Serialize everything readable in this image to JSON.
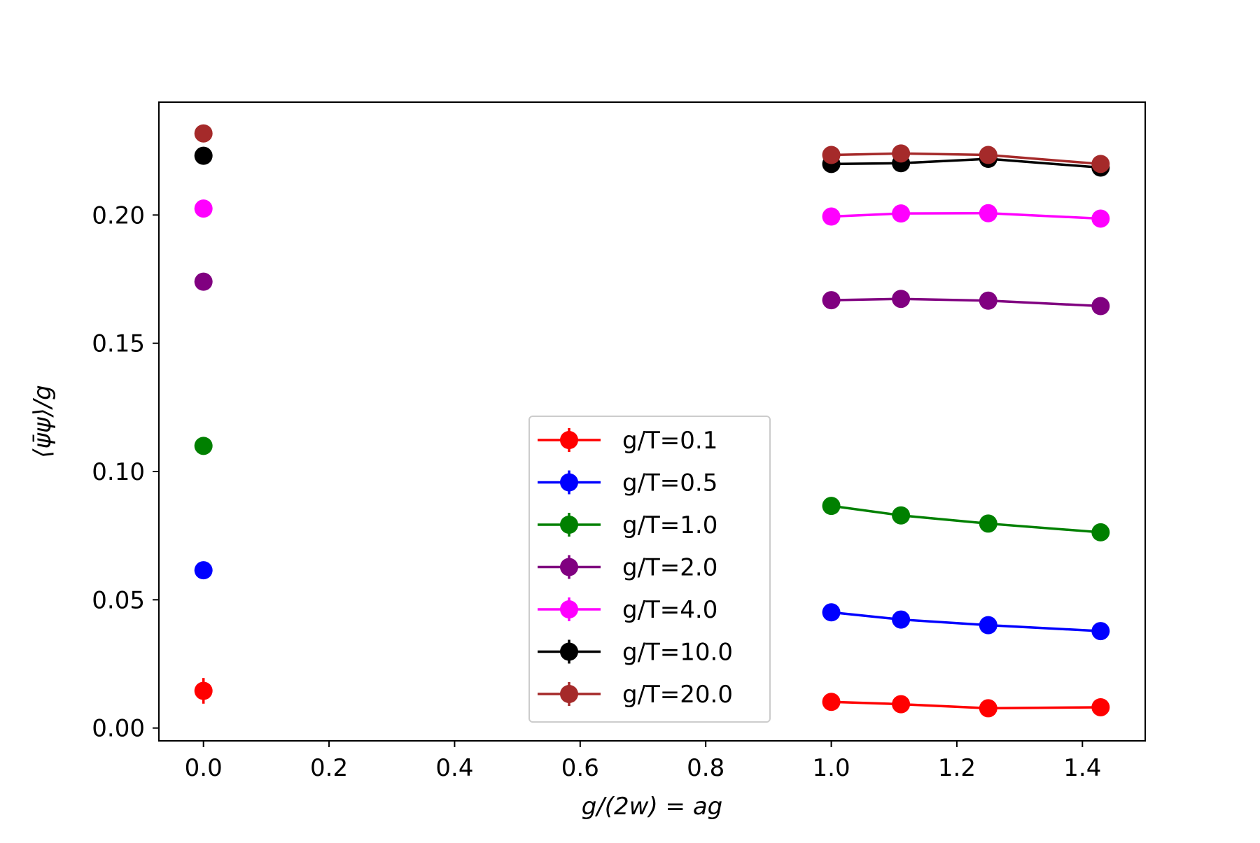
{
  "chart_data": {
    "type": "line",
    "xlabel": "g/(2w) = ag",
    "ylabel": "⟨ψ̄ψ⟩/g",
    "xlim": [
      -0.071,
      1.5
    ],
    "ylim": [
      -0.005,
      0.244
    ],
    "xticks": [
      0.0,
      0.2,
      0.4,
      0.6,
      0.8,
      1.0,
      1.2,
      1.4
    ],
    "xtick_labels": [
      "0.0",
      "0.2",
      "0.4",
      "0.6",
      "0.8",
      "1.0",
      "1.2",
      "1.4"
    ],
    "yticks": [
      0.0,
      0.05,
      0.1,
      0.15,
      0.2
    ],
    "ytick_labels": [
      "0.00",
      "0.05",
      "0.10",
      "0.15",
      "0.20"
    ],
    "grid": false,
    "legend_position": "lower-center",
    "series": [
      {
        "name": "g/T=0.1",
        "color": "#ff0000",
        "isolated_point": {
          "x": 0.0,
          "y": 0.0145,
          "yerr": 0.005
        },
        "x": [
          1.0,
          1.111,
          1.25,
          1.429
        ],
        "y": [
          0.0102,
          0.0093,
          0.0077,
          0.0081
        ]
      },
      {
        "name": "g/T=0.5",
        "color": "#0000ff",
        "isolated_point": {
          "x": 0.0,
          "y": 0.0615,
          "yerr": 0.003
        },
        "x": [
          1.0,
          1.111,
          1.25,
          1.429
        ],
        "y": [
          0.0451,
          0.0423,
          0.0401,
          0.0378
        ]
      },
      {
        "name": "g/T=1.0",
        "color": "#008000",
        "isolated_point": {
          "x": 0.0,
          "y": 0.11,
          "yerr": 0.001
        },
        "x": [
          1.0,
          1.111,
          1.25,
          1.429
        ],
        "y": [
          0.0866,
          0.0829,
          0.0797,
          0.0763
        ]
      },
      {
        "name": "g/T=2.0",
        "color": "#800080",
        "isolated_point": {
          "x": 0.0,
          "y": 0.174,
          "yerr": 0.001
        },
        "x": [
          1.0,
          1.111,
          1.25,
          1.429
        ],
        "y": [
          0.1668,
          0.1673,
          0.1666,
          0.1645
        ]
      },
      {
        "name": "g/T=4.0",
        "color": "#ff00ff",
        "isolated_point": {
          "x": 0.0,
          "y": 0.2025,
          "yerr": 0.001
        },
        "x": [
          1.0,
          1.111,
          1.25,
          1.429
        ],
        "y": [
          0.1994,
          0.2006,
          0.2007,
          0.1986
        ]
      },
      {
        "name": "g/T=10.0",
        "color": "#000000",
        "isolated_point": {
          "x": 0.0,
          "y": 0.2231,
          "yerr": 0.001
        },
        "x": [
          1.0,
          1.111,
          1.25,
          1.429
        ],
        "y": [
          0.2199,
          0.2202,
          0.2219,
          0.2185
        ]
      },
      {
        "name": "g/T=20.0",
        "color": "#a52a2a",
        "isolated_point": {
          "x": 0.0,
          "y": 0.2318,
          "yerr": 0.001
        },
        "x": [
          1.0,
          1.111,
          1.25,
          1.429
        ],
        "y": [
          0.2234,
          0.224,
          0.2234,
          0.2199
        ]
      }
    ]
  }
}
